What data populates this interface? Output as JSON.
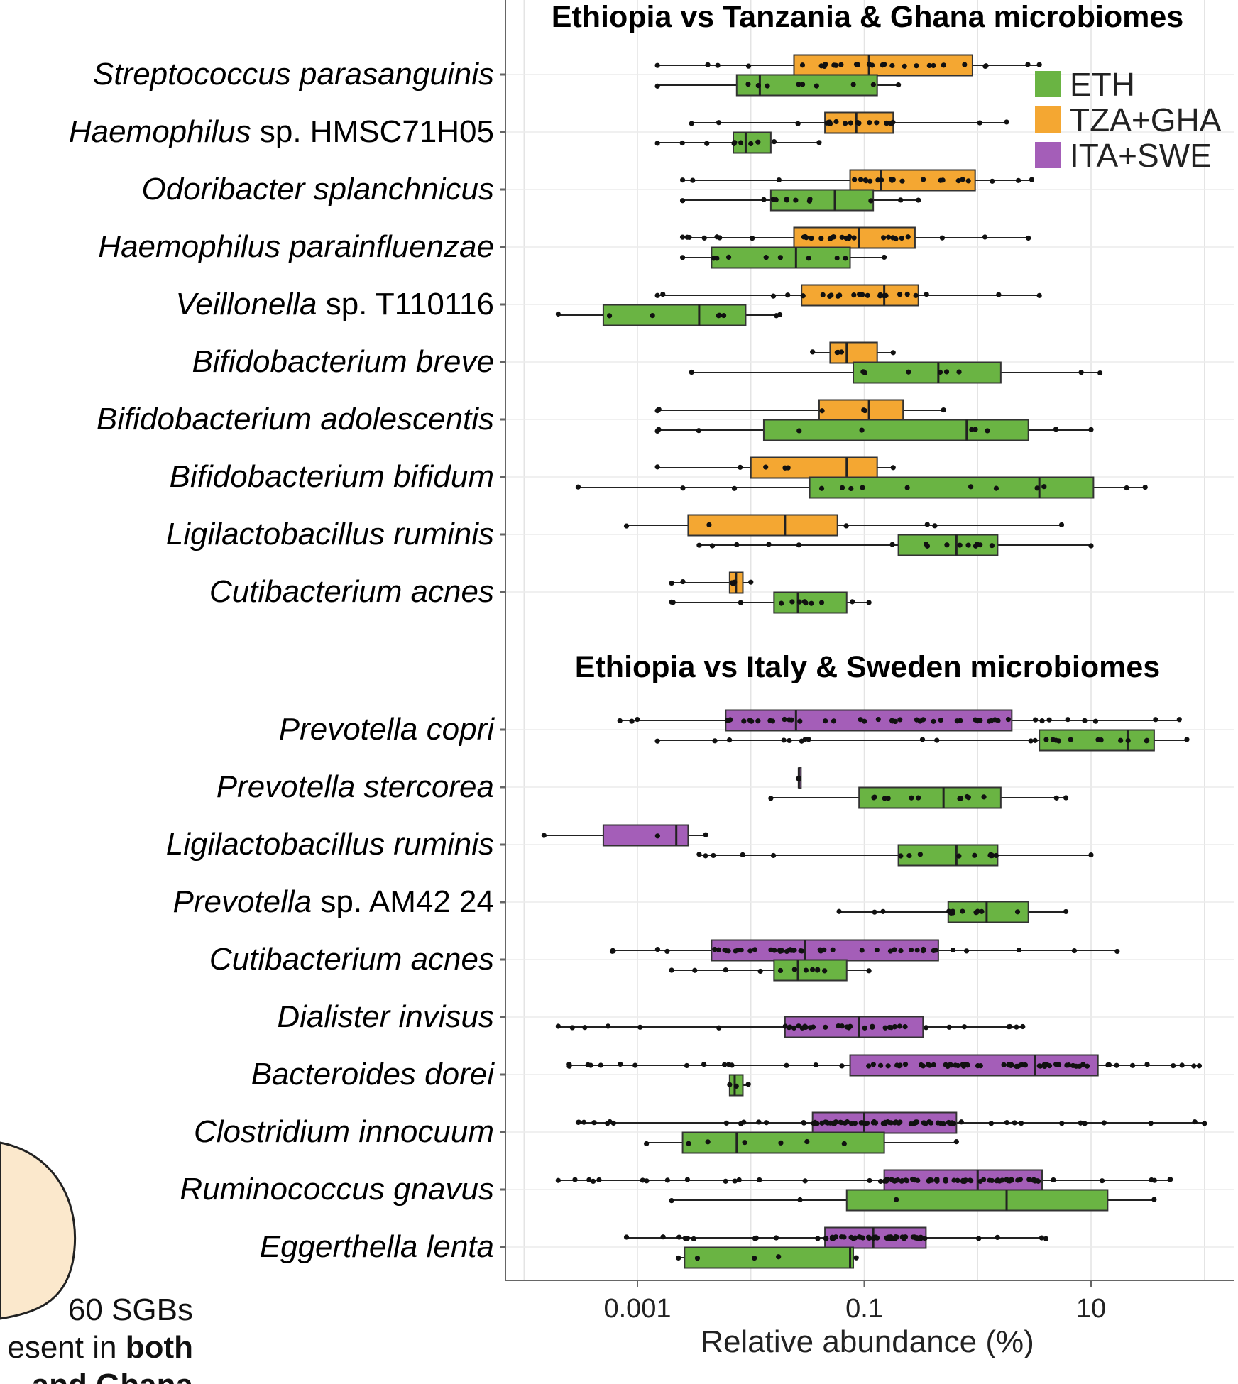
{
  "chart_data": {
    "type": "boxplot",
    "xlabel": "Relative abundance (%)",
    "xscale": "log10",
    "xlim": [
      7e-05,
      300
    ],
    "xticks": [
      0.001,
      0.1,
      10
    ],
    "xtick_labels": [
      "0.001",
      "0.1",
      "10"
    ],
    "legend": {
      "placement": "top-right",
      "entries": [
        {
          "key": "ETH",
          "label": "ETH",
          "color": "#6ab443"
        },
        {
          "key": "TZA+GHA",
          "label": "TZA+GHA",
          "color": "#f4a732"
        },
        {
          "key": "ITA+SWE",
          "label": "ITA+SWE",
          "color": "#a45eb8"
        }
      ]
    },
    "panels": [
      {
        "title": "Ethiopia vs Tanzania & Ghana microbiomes",
        "rows": [
          {
            "genus": "Streptococcus",
            "rest": " parasanguinis",
            "boxes": [
              {
                "group": "TZA+GHA",
                "min": 0.0015,
                "q1": 0.024,
                "median": 0.11,
                "q3": 0.9,
                "max": 3.5,
                "n": 30
              },
              {
                "group": "ETH",
                "min": 0.0015,
                "q1": 0.0075,
                "median": 0.012,
                "q3": 0.13,
                "max": 0.2,
                "n": 10
              }
            ]
          },
          {
            "genus": "Haemophilus",
            "rest": " sp. HMSC71H05",
            "boxes": [
              {
                "group": "TZA+GHA",
                "min": 0.003,
                "q1": 0.045,
                "median": 0.085,
                "q3": 0.18,
                "max": 1.8,
                "n": 24
              },
              {
                "group": "ETH",
                "min": 0.0015,
                "q1": 0.007,
                "median": 0.009,
                "q3": 0.015,
                "max": 0.04,
                "n": 10
              }
            ]
          },
          {
            "genus": "Odoribacter",
            "rest": " splanchnicus",
            "boxes": [
              {
                "group": "TZA+GHA",
                "min": 0.0025,
                "q1": 0.075,
                "median": 0.14,
                "q3": 0.95,
                "max": 3.0,
                "n": 24
              },
              {
                "group": "ETH",
                "min": 0.0025,
                "q1": 0.015,
                "median": 0.055,
                "q3": 0.12,
                "max": 0.3,
                "n": 12
              }
            ]
          },
          {
            "genus": "Haemophilus",
            "rest": " parainfluenzae",
            "boxes": [
              {
                "group": "TZA+GHA",
                "min": 0.0025,
                "q1": 0.024,
                "median": 0.09,
                "q3": 0.28,
                "max": 2.8,
                "n": 30
              },
              {
                "group": "ETH",
                "min": 0.0025,
                "q1": 0.0045,
                "median": 0.025,
                "q3": 0.075,
                "max": 0.15,
                "n": 10
              }
            ]
          },
          {
            "genus": "Veillonella",
            "rest": " sp. T110116",
            "boxes": [
              {
                "group": "TZA+GHA",
                "min": 0.0015,
                "q1": 0.028,
                "median": 0.15,
                "q3": 0.3,
                "max": 3.5,
                "n": 24
              },
              {
                "group": "ETH",
                "min": 0.0002,
                "q1": 0.0005,
                "median": 0.0035,
                "q3": 0.009,
                "max": 0.018,
                "n": 8
              }
            ]
          },
          {
            "genus": "Bifidobacterium",
            "rest": " breve",
            "boxes": [
              {
                "group": "TZA+GHA",
                "min": 0.035,
                "q1": 0.05,
                "median": 0.07,
                "q3": 0.13,
                "max": 0.18,
                "n": 5
              },
              {
                "group": "ETH",
                "min": 0.003,
                "q1": 0.08,
                "median": 0.45,
                "q3": 1.6,
                "max": 12,
                "n": 10
              }
            ]
          },
          {
            "genus": "Bifidobacterium",
            "rest": " adolescentis",
            "boxes": [
              {
                "group": "TZA+GHA",
                "min": 0.0015,
                "q1": 0.04,
                "median": 0.11,
                "q3": 0.22,
                "max": 0.5,
                "n": 6
              },
              {
                "group": "ETH",
                "min": 0.0015,
                "q1": 0.013,
                "median": 0.8,
                "q3": 2.8,
                "max": 10,
                "n": 10
              }
            ]
          },
          {
            "genus": "Bifidobacterium",
            "rest": " bifidum",
            "boxes": [
              {
                "group": "TZA+GHA",
                "min": 0.0015,
                "q1": 0.01,
                "median": 0.07,
                "q3": 0.13,
                "max": 0.18,
                "n": 6
              },
              {
                "group": "ETH",
                "min": 0.0003,
                "q1": 0.033,
                "median": 3.5,
                "q3": 10.5,
                "max": 30,
                "n": 14
              }
            ]
          },
          {
            "genus": "Ligilactobacillus",
            "rest": " ruminis",
            "boxes": [
              {
                "group": "TZA+GHA",
                "min": 0.0008,
                "q1": 0.0028,
                "median": 0.02,
                "q3": 0.058,
                "max": 5.5,
                "n": 6
              },
              {
                "group": "ETH",
                "min": 0.0035,
                "q1": 0.2,
                "median": 0.65,
                "q3": 1.5,
                "max": 10,
                "n": 16
              }
            ]
          },
          {
            "genus": "Cutibacterium",
            "rest": " acnes",
            "boxes": [
              {
                "group": "TZA+GHA",
                "min": 0.002,
                "q1": 0.0065,
                "median": 0.0074,
                "q3": 0.0085,
                "max": 0.01,
                "n": 6
              },
              {
                "group": "ETH",
                "min": 0.002,
                "q1": 0.016,
                "median": 0.026,
                "q3": 0.07,
                "max": 0.11,
                "n": 12
              }
            ]
          }
        ]
      },
      {
        "title": "Ethiopia vs Italy & Sweden microbiomes",
        "rows": [
          {
            "genus": "Prevotella",
            "rest": " copri",
            "boxes": [
              {
                "group": "ITA+SWE",
                "min": 0.0007,
                "q1": 0.006,
                "median": 0.025,
                "q3": 2.0,
                "max": 60,
                "n": 50
              },
              {
                "group": "ETH",
                "min": 0.0015,
                "q1": 3.5,
                "median": 21,
                "q3": 36,
                "max": 70,
                "n": 24
              }
            ]
          },
          {
            "genus": "Prevotella",
            "rest": " stercorea",
            "boxes": [
              {
                "group": "ITA+SWE",
                "min": 0.0265,
                "q1": 0.0265,
                "median": 0.0265,
                "q3": 0.0265,
                "max": 0.0265,
                "n": 3
              },
              {
                "group": "ETH",
                "min": 0.015,
                "q1": 0.09,
                "median": 0.5,
                "q3": 1.6,
                "max": 6,
                "n": 14
              }
            ]
          },
          {
            "genus": "Ligilactobacillus",
            "rest": " ruminis",
            "boxes": [
              {
                "group": "ITA+SWE",
                "min": 0.00015,
                "q1": 0.0005,
                "median": 0.0022,
                "q3": 0.0028,
                "max": 0.004,
                "n": 3
              },
              {
                "group": "ETH",
                "min": 0.0035,
                "q1": 0.2,
                "median": 0.65,
                "q3": 1.5,
                "max": 10,
                "n": 16
              }
            ]
          },
          {
            "genus": "Prevotella",
            "rest": " sp. AM42 24",
            "boxes": [
              {
                "group": "ETH",
                "min": 0.06,
                "q1": 0.55,
                "median": 1.2,
                "q3": 2.8,
                "max": 6,
                "n": 14
              }
            ]
          },
          {
            "genus": "Cutibacterium",
            "rest": " acnes",
            "boxes": [
              {
                "group": "ITA+SWE",
                "min": 0.0006,
                "q1": 0.0045,
                "median": 0.03,
                "q3": 0.45,
                "max": 17,
                "n": 50
              },
              {
                "group": "ETH",
                "min": 0.002,
                "q1": 0.016,
                "median": 0.026,
                "q3": 0.07,
                "max": 0.11,
                "n": 12
              }
            ]
          },
          {
            "genus": "Dialister",
            "rest": " invisus",
            "boxes": [
              {
                "group": "ITA+SWE",
                "min": 0.0002,
                "q1": 0.02,
                "median": 0.09,
                "q3": 0.33,
                "max": 2.5,
                "n": 40
              }
            ]
          },
          {
            "genus": "Bacteroides",
            "rest": " dorei",
            "boxes": [
              {
                "group": "ITA+SWE",
                "min": 0.00025,
                "q1": 0.075,
                "median": 3.2,
                "q3": 11.5,
                "max": 90,
                "n": 80
              },
              {
                "group": "ETH",
                "min": 0.0065,
                "q1": 0.0065,
                "median": 0.0072,
                "q3": 0.0085,
                "max": 0.0095,
                "n": 3
              }
            ]
          },
          {
            "genus": "Clostridium",
            "rest": " innocuum",
            "boxes": [
              {
                "group": "ITA+SWE",
                "min": 0.0003,
                "q1": 0.035,
                "median": 0.1,
                "q3": 0.65,
                "max": 100,
                "n": 80
              },
              {
                "group": "ETH",
                "min": 0.0012,
                "q1": 0.0025,
                "median": 0.0075,
                "q3": 0.15,
                "max": 0.65,
                "n": 8
              }
            ]
          },
          {
            "genus": "Ruminococcus",
            "rest": " gnavus",
            "boxes": [
              {
                "group": "ITA+SWE",
                "min": 0.0002,
                "q1": 0.15,
                "median": 1.0,
                "q3": 3.7,
                "max": 50,
                "n": 90
              },
              {
                "group": "ETH",
                "min": 0.002,
                "q1": 0.07,
                "median": 1.8,
                "q3": 14,
                "max": 36,
                "n": 4
              }
            ]
          },
          {
            "genus": "Eggerthella",
            "rest": " lenta",
            "boxes": [
              {
                "group": "ITA+SWE",
                "min": 0.0008,
                "q1": 0.045,
                "median": 0.12,
                "q3": 0.35,
                "max": 4,
                "n": 60
              },
              {
                "group": "ETH",
                "min": 0.0023,
                "q1": 0.0026,
                "median": 0.075,
                "q3": 0.08,
                "max": 0.085,
                "n": 5
              }
            ]
          }
        ]
      }
    ]
  },
  "venn_fragment": {
    "lines": [
      {
        "text": "60 SGBs",
        "bold": false
      },
      {
        "text": "esent in ",
        "bold": false,
        "trailing_bold": "both"
      },
      {
        "text": "and Ghana",
        "bold": true
      }
    ]
  }
}
